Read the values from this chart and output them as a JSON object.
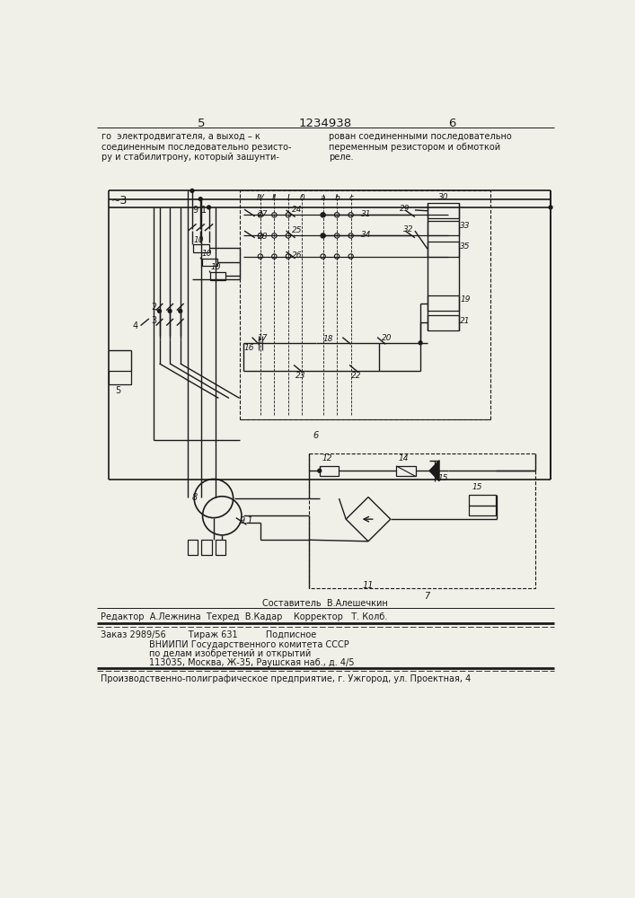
{
  "page_number_left": "5",
  "page_number_center": "1234938",
  "page_number_right": "6",
  "text_left": "го  электродвигателя, а выход – к\nсоединенным последовательно резисто-\nру и стабилитрону, который зашунти-",
  "text_right": "рован соединенными последовательно\nпеременным резистором и обмоткой\nреле.",
  "composer": "Составитель  В.Алешечкин",
  "editor_line": "Редактор  А.Лежнина  Техред  В.Кадар    Корректор   Т. Колб.",
  "order_line": "Заказ 2989/56        Тираж 631          Подписное",
  "vniipi_line1": "ВНИИПИ Государственного комитета СССР",
  "vniipi_line2": "по делам изобретений и открытий",
  "vniipi_line3": "113035, Москва, Ж-35, Раушская наб., д. 4/5",
  "factory_line": "Производственно-полиграфическое предприятие, г. Ужгород, ул. Проектная, 4",
  "bg_color": "#f0efe8",
  "line_color": "#1a1a1a"
}
